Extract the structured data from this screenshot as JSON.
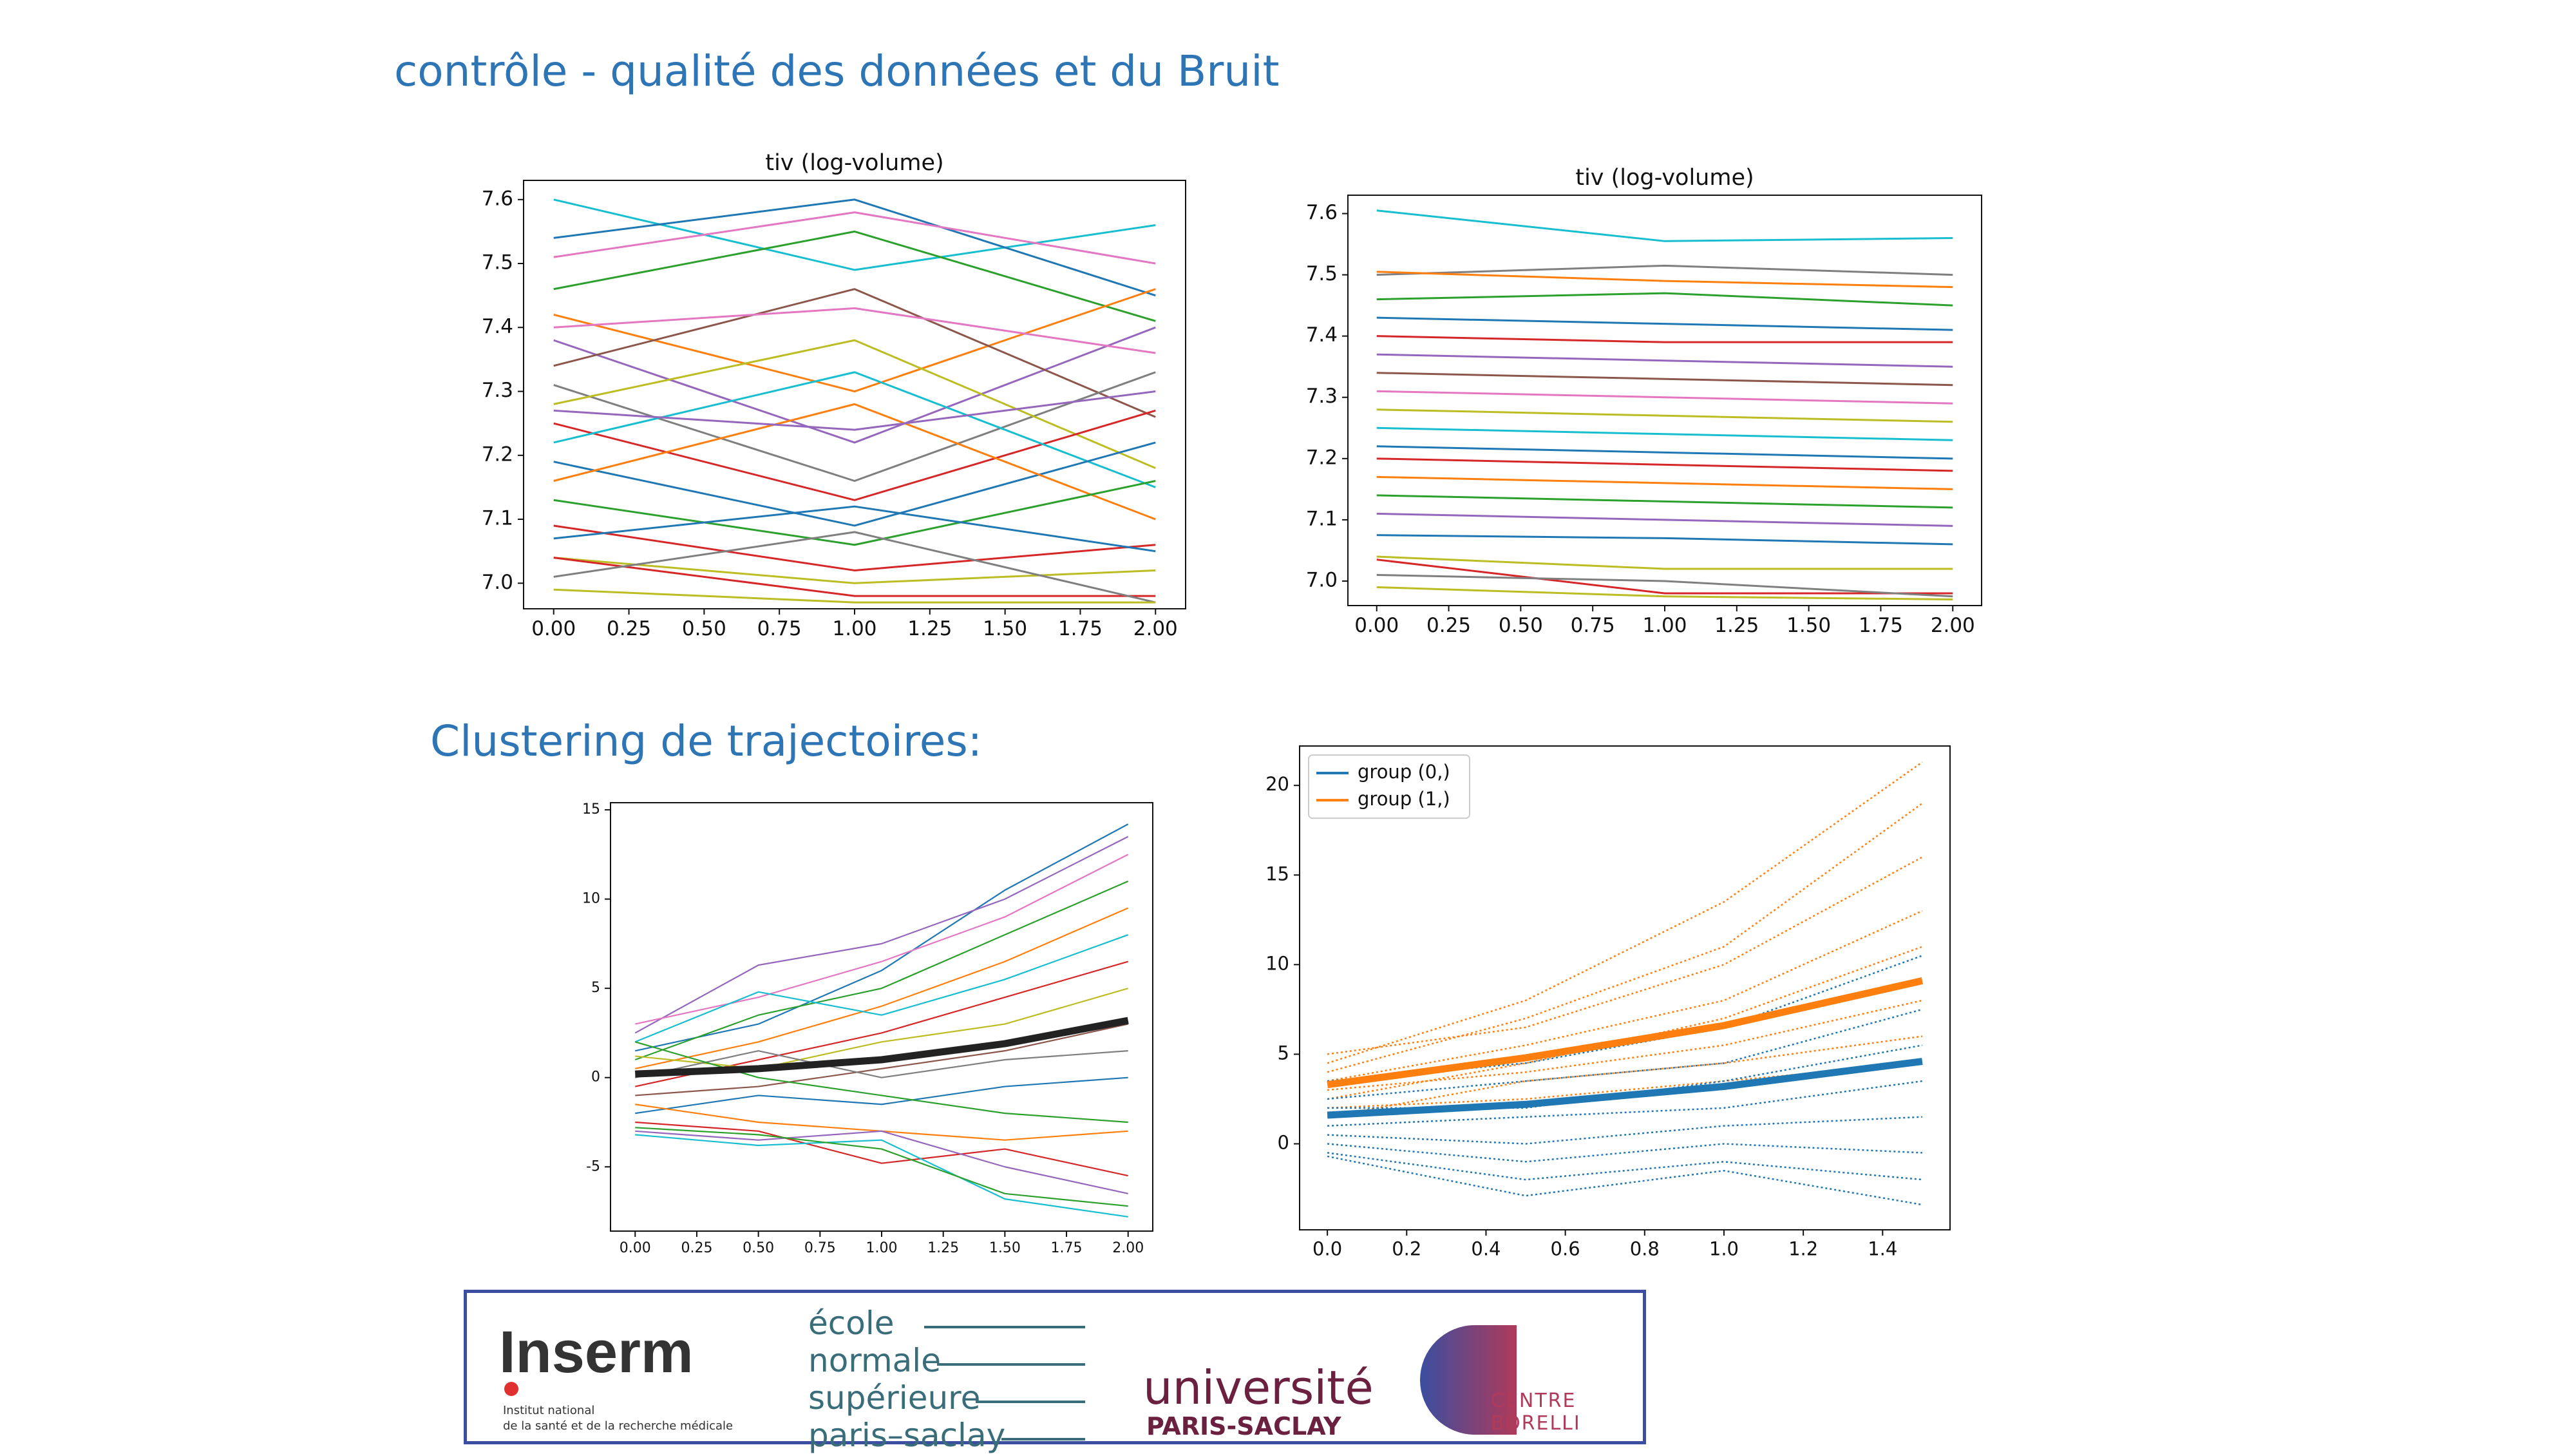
{
  "slide": {
    "title": "contrôle - qualité des données et du Bruit",
    "section_title": "Clustering de trajectoires:"
  },
  "chart_data": [
    {
      "type": "line",
      "title": "tiv (log-volume)",
      "x": [
        0,
        1,
        2
      ],
      "xlim": [
        -0.1,
        2.1
      ],
      "xticks": [
        {
          "value": 0,
          "label": "0.00"
        },
        0.25,
        {
          "value": 0.5,
          "label": "0.50"
        },
        0.75,
        {
          "value": 1,
          "label": "1.00"
        },
        1.25,
        {
          "value": 1.5,
          "label": "1.50"
        },
        1.75,
        {
          "value": 2,
          "label": "2.00"
        }
      ],
      "ylim": [
        6.96,
        7.63
      ],
      "yticks": [
        {
          "value": 7,
          "label": "7.0"
        },
        7.1,
        7.2,
        7.3,
        7.4,
        7.5,
        7.6
      ],
      "series": [
        {
          "color": "#17becf",
          "values": [
            7.6,
            7.49,
            7.56
          ]
        },
        {
          "color": "#1f77b4",
          "values": [
            7.54,
            7.6,
            7.45
          ]
        },
        {
          "color": "#e377c2",
          "values": [
            7.51,
            7.58,
            7.5
          ]
        },
        {
          "color": "#2ca02c",
          "values": [
            7.46,
            7.55,
            7.41
          ]
        },
        {
          "color": "#ff7f0e",
          "values": [
            7.42,
            7.3,
            7.46
          ]
        },
        {
          "color": "#9467bd",
          "values": [
            7.38,
            7.22,
            7.4
          ]
        },
        {
          "color": "#8c564b",
          "values": [
            7.34,
            7.46,
            7.26
          ]
        },
        {
          "color": "#7f7f7f",
          "values": [
            7.31,
            7.16,
            7.33
          ]
        },
        {
          "color": "#bcbd22",
          "values": [
            7.28,
            7.38,
            7.18
          ]
        },
        {
          "color": "#d62728",
          "values": [
            7.25,
            7.13,
            7.27
          ]
        },
        {
          "color": "#17becf",
          "values": [
            7.22,
            7.33,
            7.15
          ]
        },
        {
          "color": "#1f77b4",
          "values": [
            7.19,
            7.09,
            7.22
          ]
        },
        {
          "color": "#ff7f0e",
          "values": [
            7.16,
            7.28,
            7.1
          ]
        },
        {
          "color": "#2ca02c",
          "values": [
            7.13,
            7.06,
            7.16
          ]
        },
        {
          "color": "#e377c2",
          "values": [
            7.4,
            7.43,
            7.36
          ]
        },
        {
          "color": "#9467bd",
          "values": [
            7.27,
            7.24,
            7.3
          ]
        },
        {
          "color": "#d62728",
          "values": [
            7.09,
            7.02,
            7.06
          ]
        },
        {
          "color": "#1f77b4",
          "values": [
            7.07,
            7.12,
            7.05
          ]
        },
        {
          "color": "#bcbd22",
          "values": [
            7.04,
            7.0,
            7.02
          ]
        },
        {
          "color": "#d62728",
          "values": [
            7.04,
            6.98,
            6.98
          ]
        },
        {
          "color": "#7f7f7f",
          "values": [
            7.01,
            7.08,
            6.97
          ]
        },
        {
          "color": "#bcbd22",
          "values": [
            6.99,
            6.97,
            6.97
          ]
        }
      ]
    },
    {
      "type": "line",
      "title": "tiv (log-volume)",
      "x": [
        0,
        1,
        2
      ],
      "xlim": [
        -0.1,
        2.1
      ],
      "xticks": [
        {
          "value": 0,
          "label": "0.00"
        },
        0.25,
        {
          "value": 0.5,
          "label": "0.50"
        },
        0.75,
        {
          "value": 1,
          "label": "1.00"
        },
        1.25,
        {
          "value": 1.5,
          "label": "1.50"
        },
        1.75,
        {
          "value": 2,
          "label": "2.00"
        }
      ],
      "ylim": [
        6.96,
        7.63
      ],
      "yticks": [
        {
          "value": 7,
          "label": "7.0"
        },
        7.1,
        7.2,
        7.3,
        7.4,
        7.5,
        7.6
      ],
      "series": [
        {
          "color": "#17becf",
          "values": [
            7.605,
            7.555,
            7.56
          ]
        },
        {
          "color": "#7f7f7f",
          "values": [
            7.5,
            7.515,
            7.5
          ]
        },
        {
          "color": "#ff7f0e",
          "values": [
            7.505,
            7.49,
            7.48
          ]
        },
        {
          "color": "#2ca02c",
          "values": [
            7.46,
            7.47,
            7.45
          ]
        },
        {
          "color": "#1f77b4",
          "values": [
            7.43,
            7.42,
            7.41
          ]
        },
        {
          "color": "#d62728",
          "values": [
            7.4,
            7.39,
            7.39
          ]
        },
        {
          "color": "#9467bd",
          "values": [
            7.37,
            7.36,
            7.35
          ]
        },
        {
          "color": "#8c564b",
          "values": [
            7.34,
            7.33,
            7.32
          ]
        },
        {
          "color": "#e377c2",
          "values": [
            7.31,
            7.3,
            7.29
          ]
        },
        {
          "color": "#bcbd22",
          "values": [
            7.28,
            7.27,
            7.26
          ]
        },
        {
          "color": "#17becf",
          "values": [
            7.25,
            7.24,
            7.23
          ]
        },
        {
          "color": "#1f77b4",
          "values": [
            7.22,
            7.21,
            7.2
          ]
        },
        {
          "color": "#d62728",
          "values": [
            7.2,
            7.19,
            7.18
          ]
        },
        {
          "color": "#ff7f0e",
          "values": [
            7.17,
            7.16,
            7.15
          ]
        },
        {
          "color": "#2ca02c",
          "values": [
            7.14,
            7.13,
            7.12
          ]
        },
        {
          "color": "#9467bd",
          "values": [
            7.11,
            7.1,
            7.09
          ]
        },
        {
          "color": "#1f77b4",
          "values": [
            7.075,
            7.07,
            7.06
          ]
        },
        {
          "color": "#bcbd22",
          "values": [
            7.04,
            7.02,
            7.02
          ]
        },
        {
          "color": "#d62728",
          "values": [
            7.035,
            6.98,
            6.98
          ]
        },
        {
          "color": "#7f7f7f",
          "values": [
            7.01,
            7.0,
            6.975
          ]
        },
        {
          "color": "#bcbd22",
          "values": [
            6.99,
            6.975,
            6.97
          ]
        }
      ]
    },
    {
      "type": "line",
      "x": [
        0,
        0.5,
        1,
        1.5,
        2
      ],
      "xlim": [
        -0.1,
        2.1
      ],
      "xticks": [
        {
          "value": 0,
          "label": "0.00"
        },
        0.25,
        {
          "value": 0.5,
          "label": "0.50"
        },
        0.75,
        {
          "value": 1,
          "label": "1.00"
        },
        1.25,
        {
          "value": 1.5,
          "label": "1.50"
        },
        1.75,
        {
          "value": 2,
          "label": "2.00"
        }
      ],
      "ylim": [
        -8.6,
        15.4
      ],
      "yticks": [
        -5,
        0,
        5,
        10,
        15
      ],
      "series": [
        {
          "color": "#1f77b4",
          "values": [
            1.5,
            3.0,
            6.0,
            10.5,
            14.2
          ]
        },
        {
          "color": "#9467bd",
          "values": [
            2.5,
            6.3,
            7.5,
            10.0,
            13.5
          ]
        },
        {
          "color": "#e377c2",
          "values": [
            3.0,
            4.5,
            6.5,
            9.0,
            12.5
          ]
        },
        {
          "color": "#2ca02c",
          "values": [
            1.0,
            3.5,
            5.0,
            8.0,
            11.0
          ]
        },
        {
          "color": "#ff7f0e",
          "values": [
            0.5,
            2.0,
            4.0,
            6.5,
            9.5
          ]
        },
        {
          "color": "#17becf",
          "values": [
            2.0,
            4.8,
            3.5,
            5.5,
            8.0
          ]
        },
        {
          "color": "#d62728",
          "values": [
            -0.5,
            1.0,
            2.5,
            4.5,
            6.5
          ]
        },
        {
          "color": "#bcbd22",
          "values": [
            1.2,
            0.5,
            2.0,
            3.0,
            5.0
          ]
        },
        {
          "color": "#8c564b",
          "values": [
            -1.0,
            -0.5,
            0.5,
            1.5,
            3.0
          ]
        },
        {
          "color": "#7f7f7f",
          "values": [
            0.0,
            1.5,
            0.0,
            1.0,
            1.5
          ]
        },
        {
          "color": "#1f77b4",
          "values": [
            -2.0,
            -1.0,
            -1.5,
            -0.5,
            0.0
          ]
        },
        {
          "color": "#2ca02c",
          "values": [
            2.0,
            0.0,
            -1.0,
            -2.0,
            -2.5
          ]
        },
        {
          "color": "#ff7f0e",
          "values": [
            -1.5,
            -2.5,
            -3.0,
            -3.5,
            -3.0
          ]
        },
        {
          "color": "#d62728",
          "values": [
            -2.5,
            -3.0,
            -4.8,
            -4.0,
            -5.5
          ]
        },
        {
          "color": "#9467bd",
          "values": [
            -3.0,
            -3.5,
            -3.0,
            -5.0,
            -6.5
          ]
        },
        {
          "color": "#17becf",
          "values": [
            -3.2,
            -3.8,
            -3.5,
            -6.8,
            -7.8
          ]
        },
        {
          "color": "#2ca02c",
          "values": [
            -2.8,
            -3.2,
            -4.0,
            -6.5,
            -7.2
          ]
        },
        {
          "color": "#222222",
          "style": "thick",
          "values": [
            0.2,
            0.5,
            1.0,
            1.9,
            3.2
          ]
        }
      ]
    },
    {
      "type": "line",
      "x": [
        0,
        0.5,
        1,
        1.5
      ],
      "xlim": [
        -0.07,
        1.57
      ],
      "xticks": [
        {
          "value": 0,
          "label": "0.0"
        },
        0.2,
        0.4,
        0.6,
        0.8,
        {
          "value": 1,
          "label": "1.0"
        },
        1.2,
        1.4
      ],
      "ylim": [
        -4.8,
        22.2
      ],
      "yticks": [
        0,
        5,
        10,
        15,
        20
      ],
      "legend": "upper left",
      "series": [
        {
          "color": "#ff7f0e",
          "style": "dotted",
          "values": [
            4.5,
            8.0,
            13.5,
            21.3
          ]
        },
        {
          "color": "#ff7f0e",
          "style": "dotted",
          "values": [
            4.0,
            7.0,
            11.0,
            19.0
          ]
        },
        {
          "color": "#ff7f0e",
          "style": "dotted",
          "values": [
            5.0,
            6.5,
            10.0,
            16.0
          ]
        },
        {
          "color": "#ff7f0e",
          "style": "dotted",
          "values": [
            3.5,
            5.5,
            8.0,
            13.0
          ]
        },
        {
          "color": "#ff7f0e",
          "style": "dotted",
          "values": [
            2.5,
            4.5,
            7.0,
            11.0
          ]
        },
        {
          "color": "#ff7f0e",
          "style": "dotted",
          "values": [
            3.0,
            4.0,
            5.5,
            8.0
          ]
        },
        {
          "color": "#ff7f0e",
          "style": "dotted",
          "values": [
            1.5,
            3.5,
            4.5,
            6.0
          ]
        },
        {
          "color": "#ff7f0e",
          "style": "dotted",
          "values": [
            2.0,
            2.5,
            3.5,
            4.5
          ]
        },
        {
          "color": "#1f77b4",
          "style": "dotted",
          "values": [
            3.5,
            4.5,
            6.5,
            10.5
          ]
        },
        {
          "color": "#1f77b4",
          "style": "dotted",
          "values": [
            2.5,
            3.5,
            4.5,
            7.5
          ]
        },
        {
          "color": "#1f77b4",
          "style": "dotted",
          "values": [
            2.0,
            2.0,
            3.5,
            5.5
          ]
        },
        {
          "color": "#1f77b4",
          "style": "dotted",
          "values": [
            1.0,
            1.5,
            2.0,
            3.5
          ]
        },
        {
          "color": "#1f77b4",
          "style": "dotted",
          "values": [
            0.5,
            0.0,
            1.0,
            1.5
          ]
        },
        {
          "color": "#1f77b4",
          "style": "dotted",
          "values": [
            0.0,
            -1.0,
            0.0,
            -0.5
          ]
        },
        {
          "color": "#1f77b4",
          "style": "dotted",
          "values": [
            -0.5,
            -2.0,
            -1.0,
            -2.0
          ]
        },
        {
          "color": "#1f77b4",
          "style": "dotted",
          "values": [
            -0.7,
            -2.9,
            -1.5,
            -3.4
          ]
        },
        {
          "name": "group (0,)",
          "color": "#1f77b4",
          "style": "thick",
          "values": [
            1.6,
            2.2,
            3.2,
            4.6
          ]
        },
        {
          "name": "group (1,)",
          "color": "#ff7f0e",
          "style": "thick",
          "values": [
            3.3,
            4.8,
            6.6,
            9.1
          ]
        }
      ]
    }
  ],
  "logos": {
    "inserm": "Inserm",
    "inserm_sub1": "Institut national",
    "inserm_sub2": "de la santé et de la recherche médicale",
    "ens": [
      "école",
      "normale",
      "supérieure",
      "paris–saclay"
    ],
    "ups1": "université",
    "ups2": "PARIS-SACLAY",
    "borelli1": "CENTRE",
    "borelli2": "BORELLI"
  }
}
